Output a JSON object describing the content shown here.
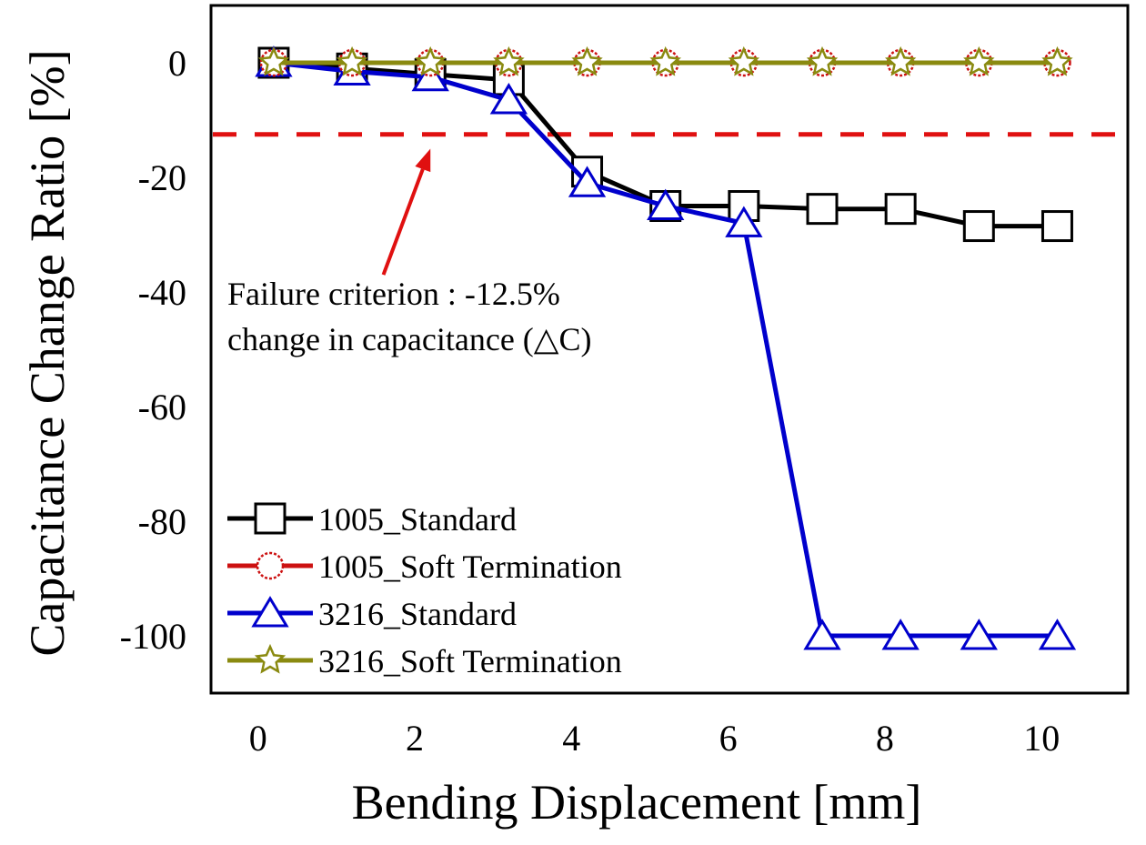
{
  "chart_data": {
    "type": "line",
    "title": "",
    "xlabel": "Bending Displacement [mm]",
    "ylabel": "Capacitance Change Ratio [%]",
    "xlim": [
      -0.6,
      11.1
    ],
    "ylim": [
      -110,
      10
    ],
    "grid": false,
    "legend_position": "bottom-left",
    "x_ticks": [
      "0",
      "2",
      "4",
      "6",
      "8",
      "10"
    ],
    "x_tick_values": [
      0,
      2,
      4,
      6,
      8,
      10
    ],
    "y_ticks": [
      "0",
      "-20",
      "-40",
      "-60",
      "-80",
      "-100"
    ],
    "y_tick_values": [
      0,
      -20,
      -40,
      -60,
      -80,
      -100
    ],
    "x": [
      0.2,
      1.2,
      2.2,
      3.2,
      4.2,
      5.2,
      6.2,
      7.2,
      8.2,
      9.2,
      10.2
    ],
    "series": [
      {
        "name": "1005_Standard",
        "color": "#000000",
        "marker": "square",
        "values": [
          0,
          -1,
          -2,
          -3,
          -19,
          -25,
          -25,
          -25.5,
          -25.5,
          -28.5,
          -28.5
        ]
      },
      {
        "name": "1005_Soft Termination",
        "color": "#cc1111",
        "marker": "circle",
        "values": [
          0,
          0,
          0,
          0,
          0,
          0,
          0,
          0,
          0,
          0,
          0
        ]
      },
      {
        "name": "3216_Standard",
        "color": "#0000cc",
        "marker": "triangle",
        "values": [
          0,
          -1.5,
          -2.5,
          -6.5,
          -21,
          -25,
          -28,
          -100,
          -100,
          -100,
          -100
        ]
      },
      {
        "name": "3216_Soft Termination",
        "color": "#8a8a10",
        "marker": "star",
        "values": [
          0,
          0,
          0,
          0,
          0,
          0,
          0,
          0,
          0,
          0,
          0
        ]
      }
    ],
    "reference_line": {
      "value": -12.5,
      "color": "#e01010",
      "style": "dashed"
    },
    "annotation": {
      "line1": "Failure criterion : -12.5%",
      "line2": "change in capacitance (△C)",
      "arrow_color": "#e01010",
      "arrow_from": [
        1.6,
        -37
      ],
      "arrow_to": [
        2.2,
        -15
      ]
    }
  }
}
